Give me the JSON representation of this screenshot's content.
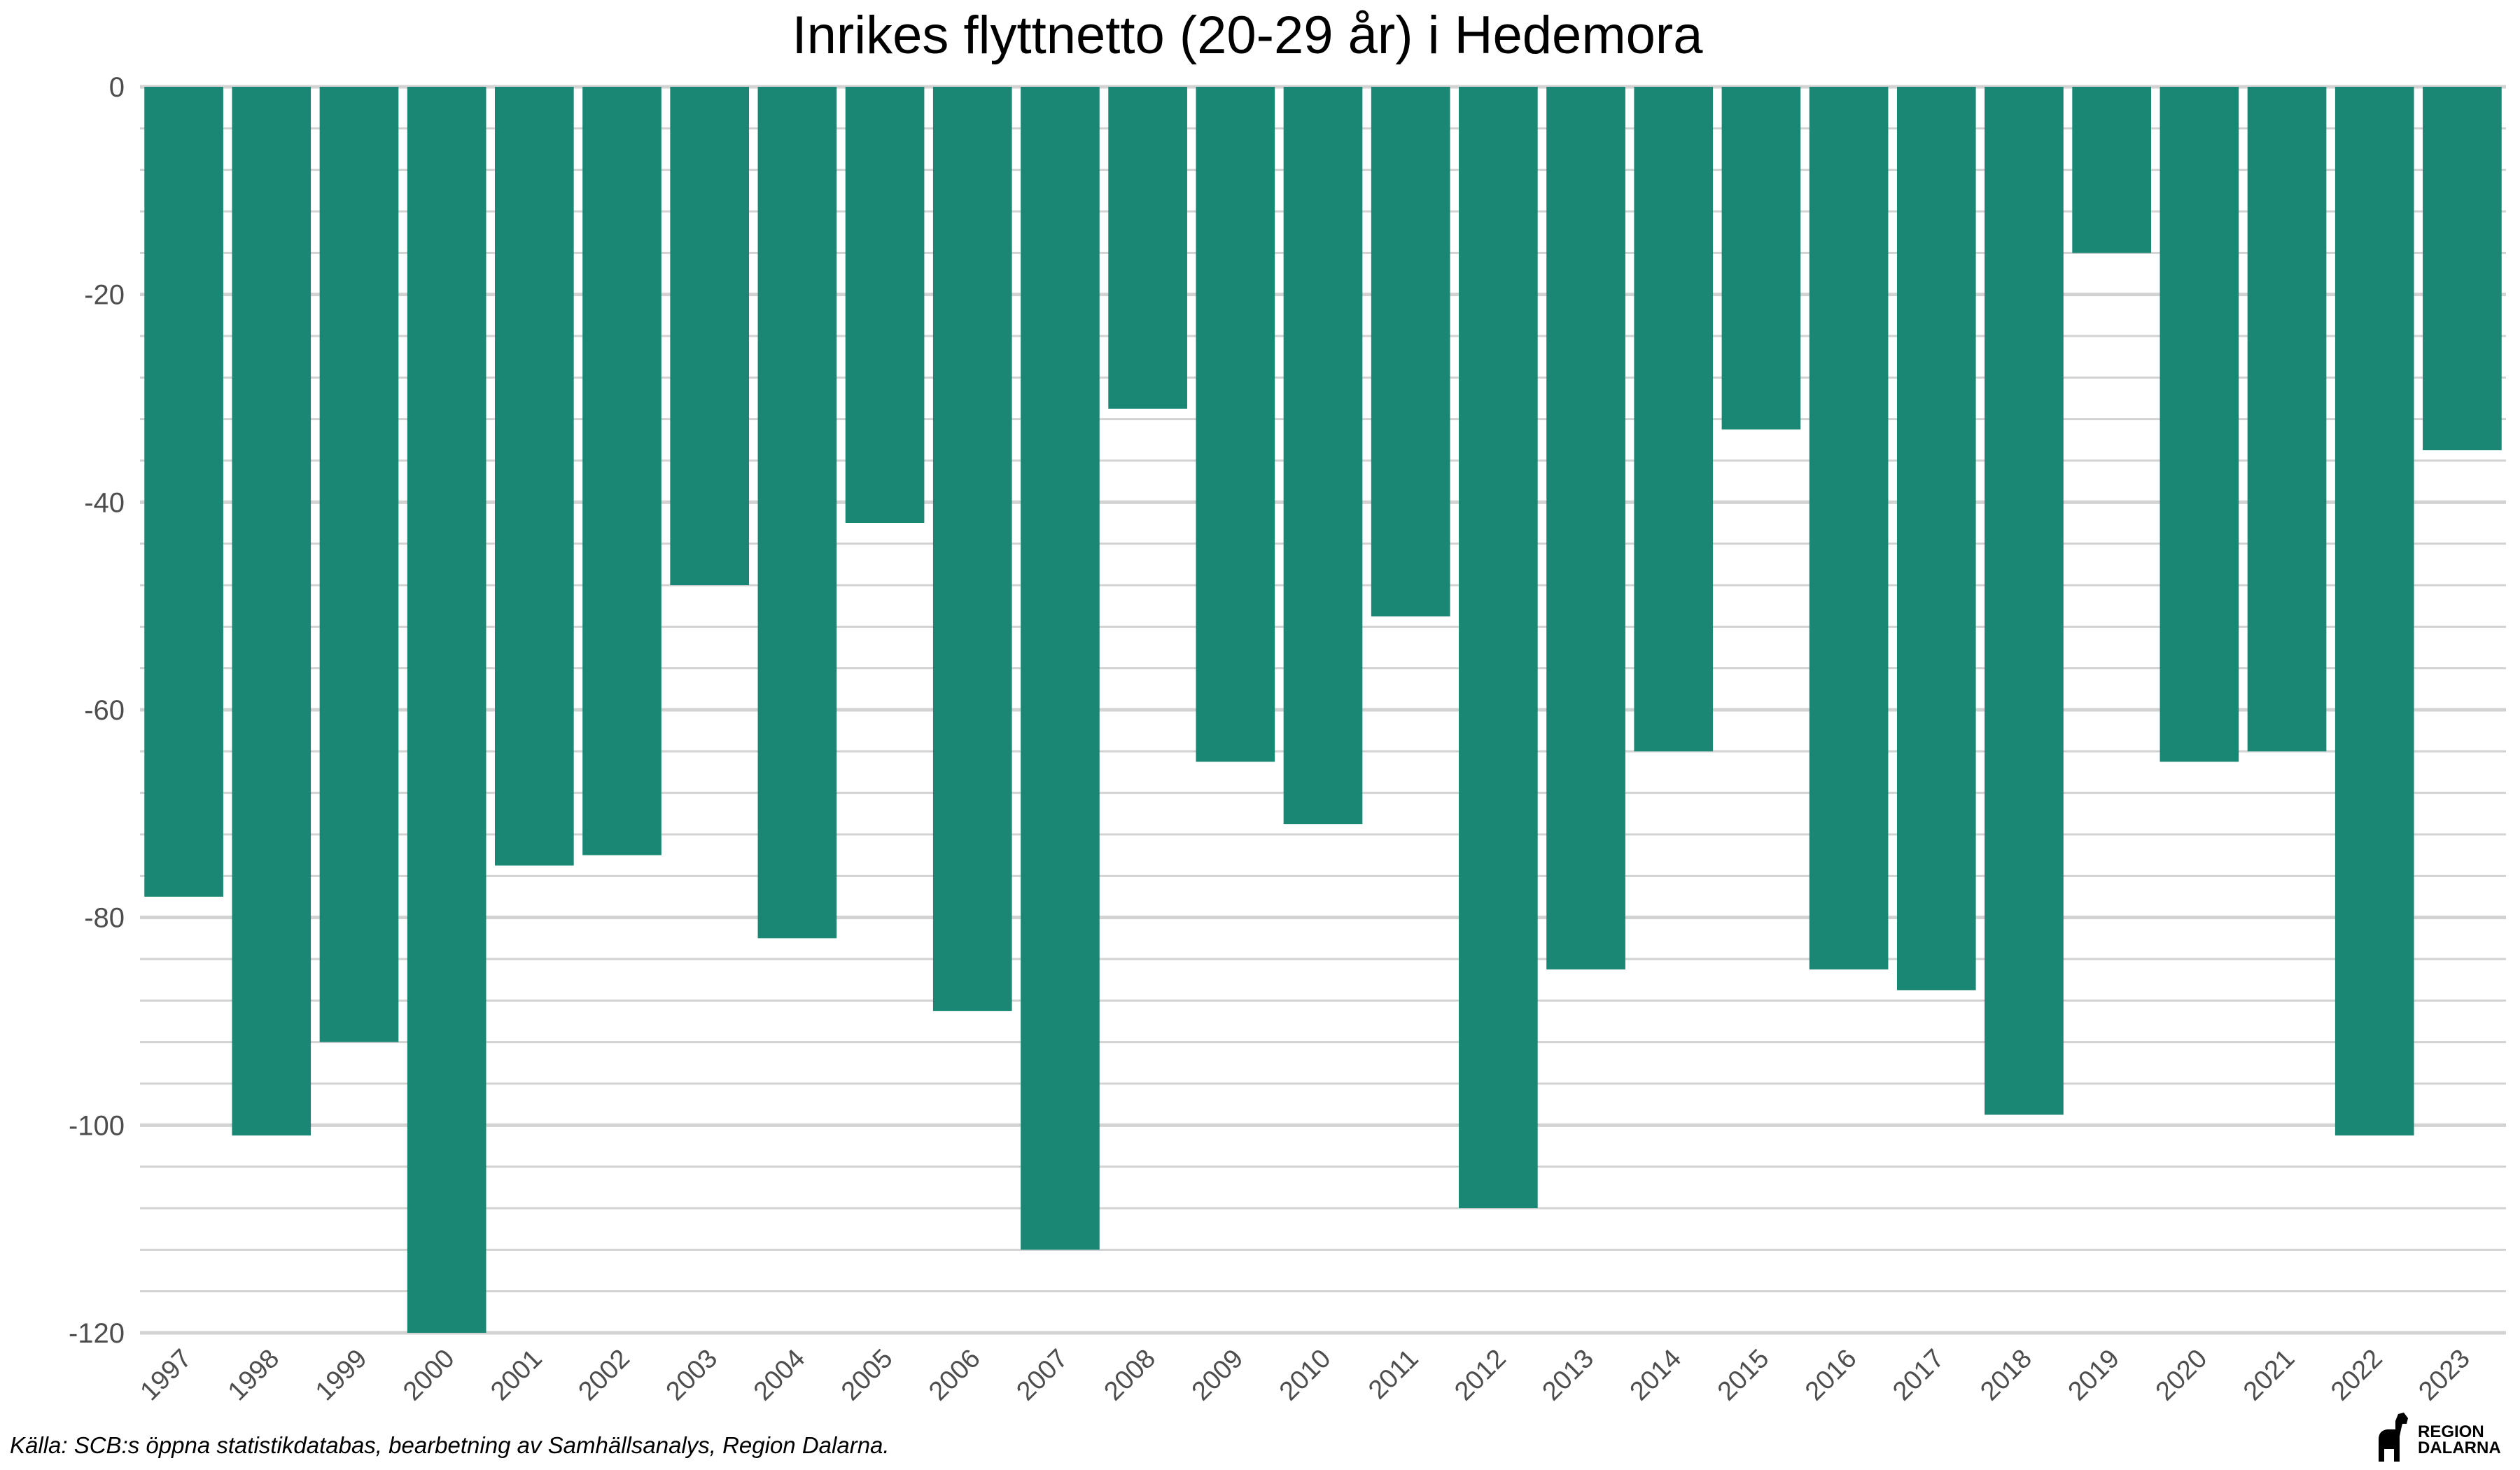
{
  "chart_data": {
    "type": "bar",
    "title": "Inrikes flyttnetto (20-29 år) i Hedemora",
    "xlabel": "",
    "ylabel": "",
    "categories": [
      "1997",
      "1998",
      "1999",
      "2000",
      "2001",
      "2002",
      "2003",
      "2004",
      "2005",
      "2006",
      "2007",
      "2008",
      "2009",
      "2010",
      "2011",
      "2012",
      "2013",
      "2014",
      "2015",
      "2016",
      "2017",
      "2018",
      "2019",
      "2020",
      "2021",
      "2022",
      "2023"
    ],
    "values": [
      -78,
      -101,
      -92,
      -120,
      -75,
      -74,
      -48,
      -82,
      -42,
      -89,
      -112,
      -31,
      -65,
      -71,
      -51,
      -108,
      -85,
      -64,
      -33,
      -85,
      -87,
      -99,
      -16,
      -65,
      -64,
      -101,
      -35
    ],
    "ylim": [
      -120,
      0
    ],
    "yticks": [
      "0",
      "-20",
      "-40",
      "-60",
      "-80",
      "-100",
      "-120"
    ],
    "grid": true,
    "bar_color": "#1a8774"
  },
  "caption": "Källa: SCB:s öppna statistikdatabas, bearbetning av Samhällsanalys, Region Dalarna.",
  "logo": {
    "line1": "REGION",
    "line2": "DALARNA"
  }
}
